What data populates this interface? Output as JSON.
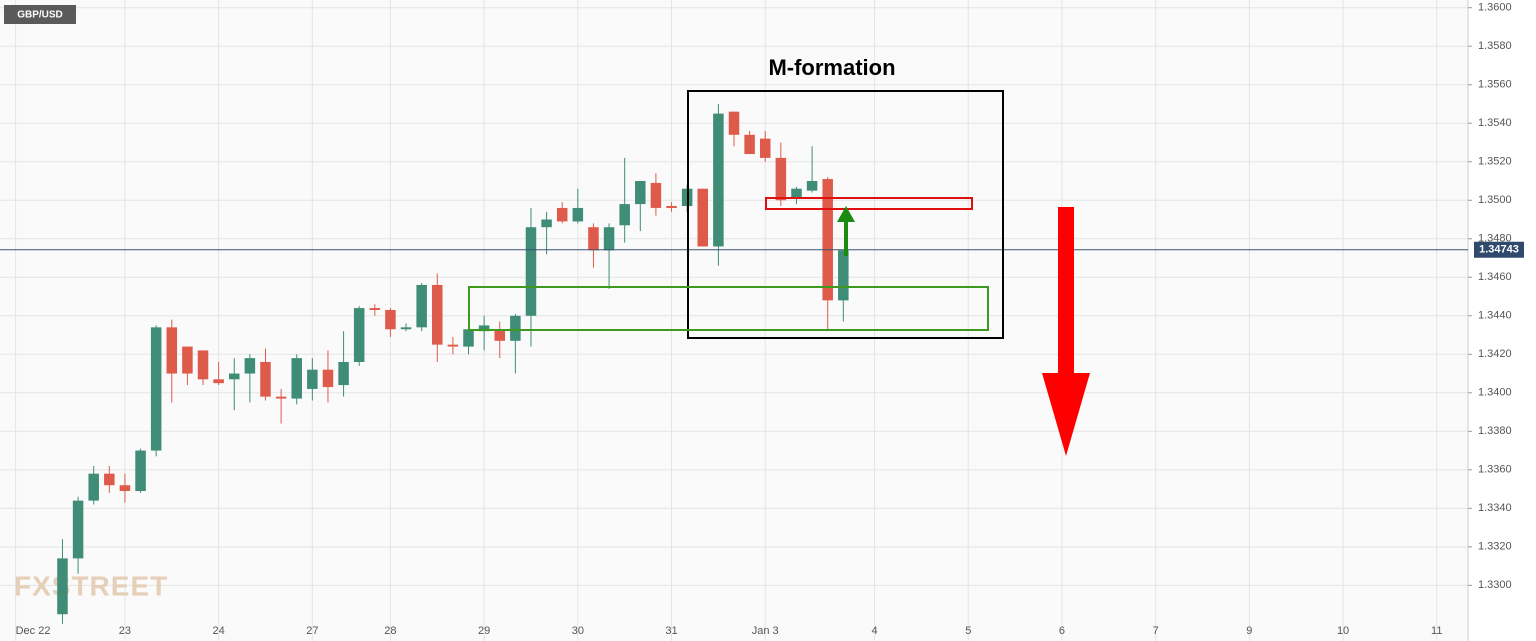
{
  "chart_data": {
    "type": "candlestick",
    "title": "M-formation",
    "symbol": "GBP/USD",
    "watermark": "FXSTREET",
    "up_color": "#3f8c77",
    "down_color": "#de5a4a",
    "grid": true,
    "x": [
      0,
      1,
      2,
      3,
      4,
      5,
      6,
      7,
      8,
      9,
      10,
      11,
      12,
      13,
      14,
      15,
      16,
      17,
      18,
      19,
      20,
      21,
      22,
      23,
      24,
      25,
      26,
      27,
      28,
      29,
      30,
      31,
      32,
      33,
      34,
      35,
      36,
      37,
      38,
      39,
      40,
      41,
      42,
      43,
      44,
      45,
      46,
      47,
      48,
      49,
      50
    ],
    "open": [
      1.3285,
      1.3314,
      1.3344,
      1.3358,
      1.3352,
      1.3349,
      1.337,
      1.3434,
      1.3424,
      1.3422,
      1.3407,
      1.3407,
      1.341,
      1.3416,
      1.3398,
      1.3397,
      1.3402,
      1.3412,
      1.3404,
      1.3416,
      1.3444,
      1.3443,
      1.3433,
      1.3434,
      1.3456,
      1.3425,
      1.3424,
      1.3432,
      1.3433,
      1.3427,
      1.344,
      1.3486,
      1.3496,
      1.3489,
      1.3486,
      1.3474,
      1.3487,
      1.3498,
      1.3509,
      1.3497,
      1.3497,
      1.3506,
      1.3476,
      1.3546,
      1.3534,
      1.3532,
      1.3522,
      1.3501,
      1.3505,
      1.3511,
      1.3448
    ],
    "high": [
      1.3324,
      1.3346,
      1.3362,
      1.3362,
      1.3358,
      1.3371,
      1.3435,
      1.3438,
      1.3424,
      1.3422,
      1.3416,
      1.3418,
      1.342,
      1.3423,
      1.3402,
      1.342,
      1.3418,
      1.3422,
      1.3432,
      1.3445,
      1.3446,
      1.3444,
      1.3436,
      1.3457,
      1.3462,
      1.3429,
      1.344,
      1.344,
      1.3437,
      1.3441,
      1.3496,
      1.3494,
      1.3499,
      1.3506,
      1.3488,
      1.3488,
      1.3522,
      1.351,
      1.3514,
      1.3499,
      1.3508,
      1.3506,
      1.355,
      1.3546,
      1.3536,
      1.3536,
      1.353,
      1.3507,
      1.3528,
      1.3512,
      1.3474
    ],
    "low": [
      1.328,
      1.3306,
      1.3342,
      1.3348,
      1.3343,
      1.3348,
      1.3367,
      1.3395,
      1.3404,
      1.3404,
      1.3404,
      1.3391,
      1.3395,
      1.3396,
      1.3384,
      1.3394,
      1.3396,
      1.3395,
      1.3398,
      1.3414,
      1.344,
      1.3429,
      1.3432,
      1.3432,
      1.3416,
      1.342,
      1.342,
      1.3422,
      1.3418,
      1.341,
      1.3424,
      1.3472,
      1.3488,
      1.3488,
      1.3465,
      1.3454,
      1.3478,
      1.3484,
      1.3492,
      1.3494,
      1.3494,
      1.3476,
      1.3466,
      1.3528,
      1.3524,
      1.352,
      1.3497,
      1.3498,
      1.3504,
      1.3432,
      1.3437
    ],
    "close": [
      1.3314,
      1.3344,
      1.3358,
      1.3352,
      1.3349,
      1.337,
      1.3434,
      1.341,
      1.341,
      1.3407,
      1.3405,
      1.341,
      1.3418,
      1.3398,
      1.3397,
      1.3418,
      1.3412,
      1.3403,
      1.3416,
      1.3444,
      1.3443,
      1.3433,
      1.3434,
      1.3456,
      1.3425,
      1.3424,
      1.3433,
      1.3435,
      1.3427,
      1.344,
      1.3486,
      1.349,
      1.3489,
      1.3496,
      1.3474,
      1.3486,
      1.3498,
      1.351,
      1.3496,
      1.3496,
      1.3506,
      1.3476,
      1.3545,
      1.3534,
      1.3524,
      1.3522,
      1.35,
      1.3506,
      1.351,
      1.3448,
      1.3474
    ],
    "last_price": 1.34743,
    "ylim": [
      1.3282,
      1.3604
    ],
    "yticks": [
      {
        "value": 1.33,
        "label": "1.3300"
      },
      {
        "value": 1.332,
        "label": "1.3320"
      },
      {
        "value": 1.334,
        "label": "1.3340"
      },
      {
        "value": 1.336,
        "label": "1.3360"
      },
      {
        "value": 1.338,
        "label": "1.3380"
      },
      {
        "value": 1.34,
        "label": "1.3400"
      },
      {
        "value": 1.342,
        "label": "1.3420"
      },
      {
        "value": 1.344,
        "label": "1.3440"
      },
      {
        "value": 1.346,
        "label": "1.3460"
      },
      {
        "value": 1.348,
        "label": "1.3480"
      },
      {
        "value": 1.35,
        "label": "1.3500"
      },
      {
        "value": 1.352,
        "label": "1.3520"
      },
      {
        "value": 1.354,
        "label": "1.3540"
      },
      {
        "value": 1.356,
        "label": "1.3560"
      },
      {
        "value": 1.358,
        "label": "1.3580"
      },
      {
        "value": 1.36,
        "label": "1.3600"
      }
    ],
    "xlim": [
      -4,
      90
    ],
    "xticks": [
      {
        "value": -3,
        "label": "Dec 22"
      },
      {
        "value": 4,
        "label": "23"
      },
      {
        "value": 10,
        "label": "24"
      },
      {
        "value": 16,
        "label": "27"
      },
      {
        "value": 21,
        "label": "28"
      },
      {
        "value": 27,
        "label": "29"
      },
      {
        "value": 33,
        "label": "30"
      },
      {
        "value": 39,
        "label": "31"
      },
      {
        "value": 45,
        "label": "Jan 3"
      },
      {
        "value": 52,
        "label": "4"
      },
      {
        "value": 58,
        "label": "5"
      },
      {
        "value": 64,
        "label": "6"
      },
      {
        "value": 70,
        "label": "7"
      },
      {
        "value": 76,
        "label": "9"
      },
      {
        "value": 82,
        "label": "10"
      },
      {
        "value": 88,
        "label": "11"
      }
    ]
  }
}
